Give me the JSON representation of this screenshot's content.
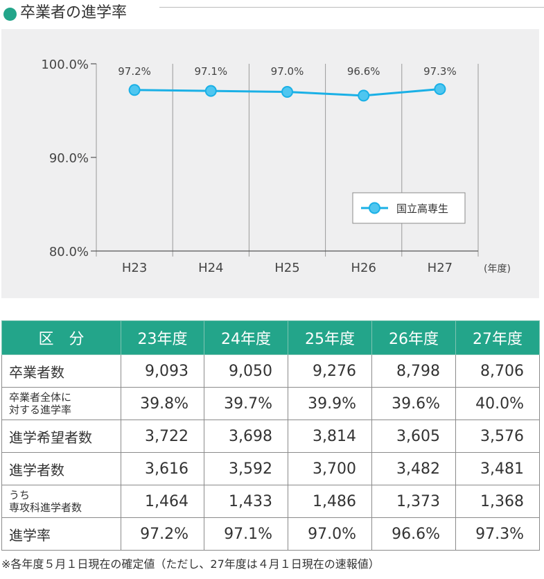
{
  "page": {
    "title": "卒業者の進学率",
    "accent_color": "#23a58a",
    "header_fill": "#23a58a",
    "line_color": "#1ab0e6",
    "marker_fill": "#4fc6f0",
    "panel_color": "#efeff0"
  },
  "chart_data": {
    "type": "line",
    "categories": [
      "H23",
      "H24",
      "H25",
      "H26",
      "H27"
    ],
    "series": [
      {
        "name": "国立高専生",
        "values": [
          97.2,
          97.1,
          97.0,
          96.6,
          97.3
        ]
      }
    ],
    "data_labels": [
      "97.2%",
      "97.1%",
      "97.0%",
      "96.6%",
      "97.3%"
    ],
    "yticks": [
      {
        "value": 80,
        "label": "80.0%"
      },
      {
        "value": 90,
        "label": "90.0%"
      },
      {
        "value": 100,
        "label": "100.0%"
      }
    ],
    "ylim": [
      80,
      100
    ],
    "x_unit": "(年度)",
    "grid": "vertical",
    "legend": "inside-right"
  },
  "table": {
    "headers": [
      "区　分",
      "23年度",
      "24年度",
      "25年度",
      "26年度",
      "27年度"
    ],
    "rows": [
      {
        "label": "卒業者数",
        "small": false,
        "values": [
          "9,093",
          "9,050",
          "9,276",
          "8,798",
          "8,706"
        ]
      },
      {
        "label": "卒業者全体に\n対する進学率",
        "small": true,
        "values": [
          "39.8%",
          "39.7%",
          "39.9%",
          "39.6%",
          "40.0%"
        ]
      },
      {
        "label": "進学希望者数",
        "small": false,
        "values": [
          "3,722",
          "3,698",
          "3,814",
          "3,605",
          "3,576"
        ]
      },
      {
        "label": "進学者数",
        "small": false,
        "values": [
          "3,616",
          "3,592",
          "3,700",
          "3,482",
          "3,481"
        ]
      },
      {
        "label": "うち\n専攻科進学者数",
        "small": true,
        "values": [
          "1,464",
          "1,433",
          "1,486",
          "1,373",
          "1,368"
        ]
      },
      {
        "label": "進学率",
        "small": false,
        "values": [
          "97.2%",
          "97.1%",
          "97.0%",
          "96.6%",
          "97.3%"
        ]
      }
    ]
  },
  "footnote": "※各年度５月１日現在の確定値（ただし、27年度は４月１日現在の速報値）"
}
